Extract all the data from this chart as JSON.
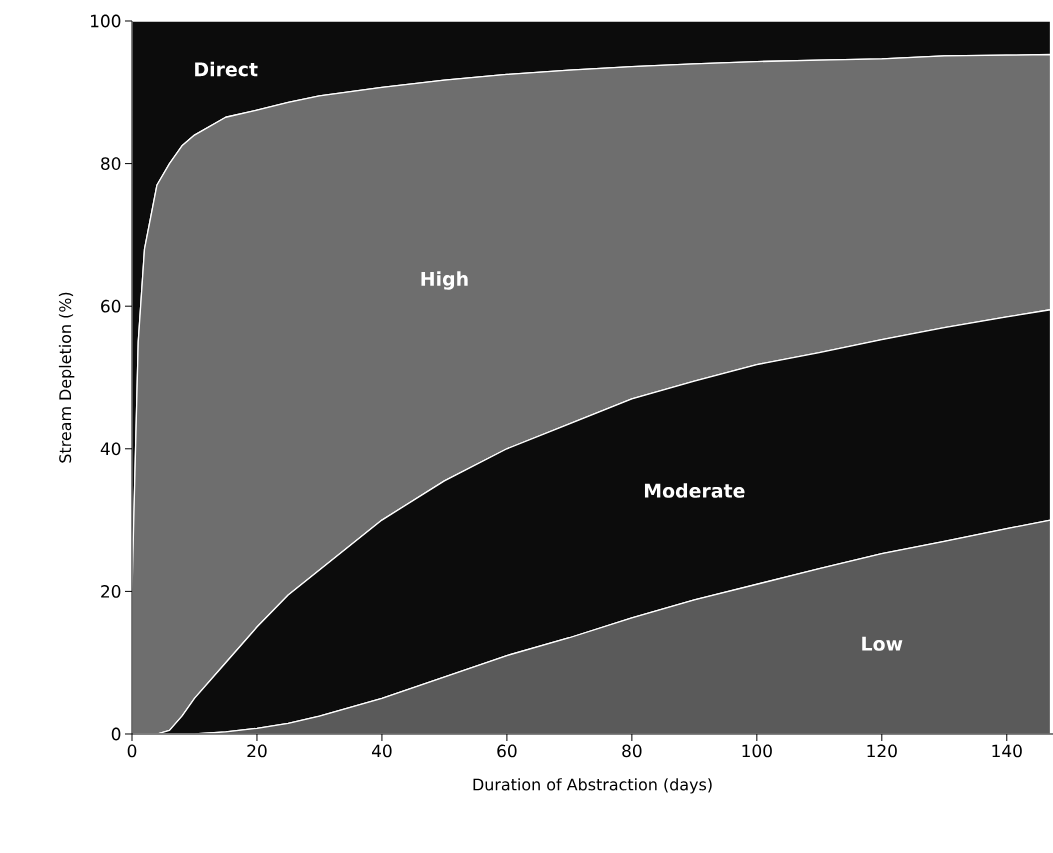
{
  "chart_data": {
    "type": "area",
    "stacked": true,
    "xlabel": "Duration of Abstraction (days)",
    "ylabel": "Stream Depletion (%)",
    "x": [
      0,
      1,
      2,
      4,
      6,
      8,
      10,
      15,
      20,
      25,
      30,
      40,
      50,
      60,
      70,
      80,
      90,
      100,
      110,
      120,
      130,
      140,
      147
    ],
    "series": [
      {
        "name": "Low",
        "color": "#5a5a5a",
        "values": [
          0,
          0,
          0,
          0,
          0,
          0,
          0,
          0.3,
          0.8,
          1.5,
          2.5,
          5,
          8,
          11,
          13.5,
          16.3,
          18.8,
          21,
          23.2,
          25.3,
          27,
          28.8,
          30
        ]
      },
      {
        "name": "Moderate",
        "color": "#0c0c0c",
        "values": [
          0,
          0,
          0,
          0,
          0.5,
          2.5,
          5,
          9.7,
          14.2,
          18,
          20.5,
          25,
          27.5,
          29,
          30,
          30.7,
          30.7,
          30.8,
          30.3,
          30,
          30,
          29.7,
          29.5
        ]
      },
      {
        "name": "High",
        "color": "#6e6e6e",
        "values": [
          20,
          55,
          68,
          77,
          79.5,
          80,
          79,
          76.5,
          72.5,
          69.1,
          66.5,
          60.7,
          56.2,
          52.5,
          49.6,
          46.6,
          44.5,
          42.5,
          41,
          39.4,
          38.1,
          36.7,
          35.8
        ]
      },
      {
        "name": "Direct",
        "color": "#0c0c0c",
        "values": [
          80,
          45,
          32,
          23,
          20,
          17.5,
          16,
          13.5,
          12.5,
          11.4,
          10.5,
          9.3,
          8.3,
          7.5,
          6.9,
          6.4,
          6,
          5.7,
          5.5,
          5.3,
          4.9,
          4.8,
          4.7
        ]
      }
    ],
    "xlim": [
      0,
      147.4
    ],
    "ylim": [
      0,
      100
    ],
    "xticks": [
      0,
      20,
      40,
      60,
      80,
      100,
      120,
      140
    ],
    "yticks": [
      0,
      20,
      40,
      60,
      80,
      100
    ]
  }
}
